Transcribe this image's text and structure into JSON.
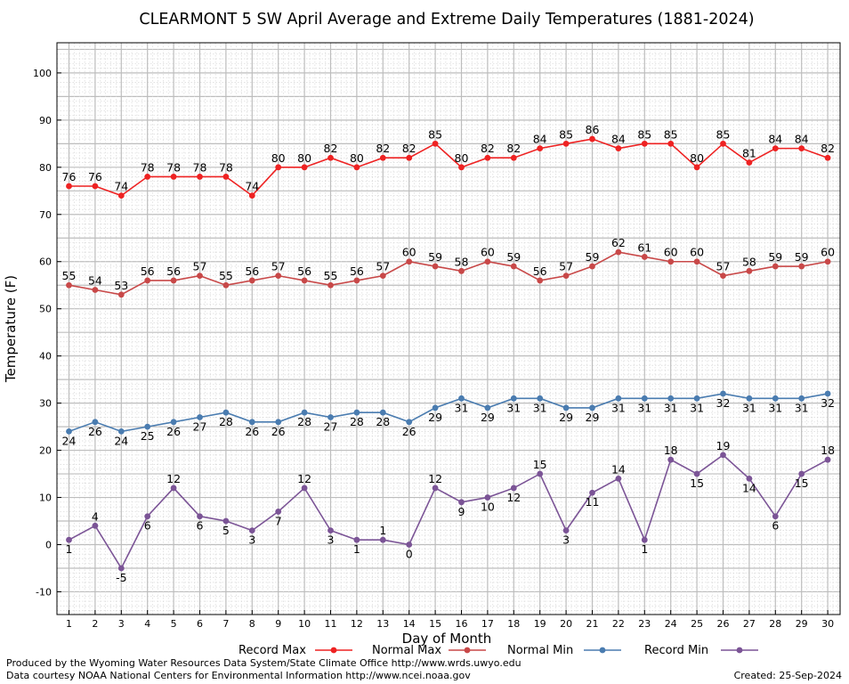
{
  "chart_data": {
    "type": "line",
    "title": "CLEARMONT 5 SW April Average and Extreme Daily Temperatures (1881-2024)",
    "xlabel": "Day of Month",
    "ylabel": "Temperature (F)",
    "xlim": [
      0.5,
      30.5
    ],
    "ylim": [
      -15,
      105
    ],
    "y_ticks": [
      -10,
      0,
      10,
      20,
      30,
      40,
      50,
      60,
      70,
      80,
      90,
      100
    ],
    "grid": true,
    "legend_position": "bottom",
    "x": [
      1,
      2,
      3,
      4,
      5,
      6,
      7,
      8,
      9,
      10,
      11,
      12,
      13,
      14,
      15,
      16,
      17,
      18,
      19,
      20,
      21,
      22,
      23,
      24,
      25,
      26,
      27,
      28,
      29,
      30
    ],
    "series": [
      {
        "name": "Record Max",
        "color": "#ee2222",
        "label_pos": "above",
        "values": [
          76,
          76,
          74,
          78,
          78,
          78,
          78,
          74,
          80,
          80,
          82,
          80,
          82,
          82,
          85,
          80,
          82,
          82,
          84,
          85,
          86,
          84,
          85,
          85,
          80,
          85,
          81,
          84,
          84,
          82
        ]
      },
      {
        "name": "Normal Max",
        "color": "#c84848",
        "label_pos": "above",
        "values": [
          55,
          54,
          53,
          56,
          56,
          57,
          55,
          56,
          57,
          56,
          55,
          56,
          57,
          60,
          59,
          58,
          60,
          59,
          56,
          57,
          59,
          62,
          61,
          60,
          60,
          57,
          58,
          59,
          59,
          60
        ]
      },
      {
        "name": "Normal Min",
        "color": "#4a7cb0",
        "label_pos": "below",
        "values": [
          24,
          26,
          24,
          25,
          26,
          27,
          28,
          26,
          26,
          28,
          27,
          28,
          28,
          26,
          29,
          31,
          29,
          31,
          31,
          29,
          29,
          31,
          31,
          31,
          31,
          32,
          31,
          31,
          31,
          32
        ]
      },
      {
        "name": "Record Min",
        "color": "#7b5496",
        "label_pos": "mixed",
        "values": [
          1,
          4,
          -5,
          6,
          12,
          6,
          5,
          3,
          7,
          12,
          3,
          1,
          1,
          0,
          12,
          9,
          10,
          12,
          15,
          3,
          11,
          14,
          1,
          18,
          15,
          19,
          14,
          6,
          15,
          18
        ]
      }
    ]
  },
  "footer": {
    "producer": "Produced by the Wyoming Water Resources Data System/State Climate Office http://www.wrds.uwyo.edu",
    "source": "Data courtesy NOAA National Centers for Environmental Information http://www.ncei.noaa.gov",
    "created": "Created:  25-Sep-2024"
  }
}
